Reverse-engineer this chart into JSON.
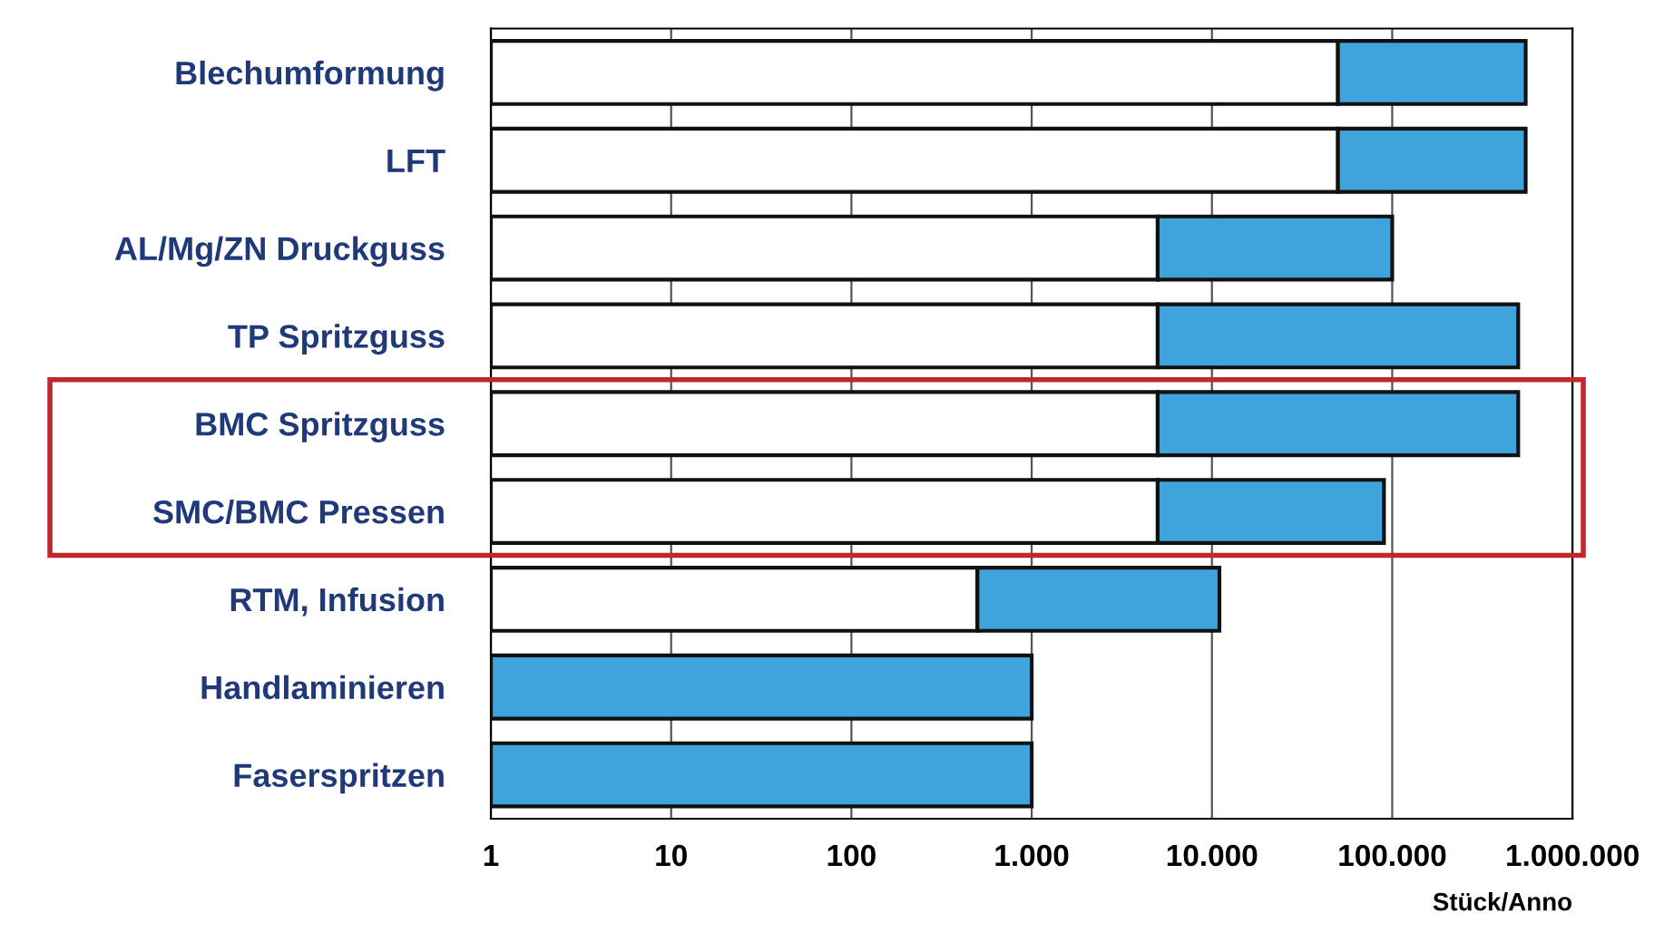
{
  "chart_data": {
    "type": "bar",
    "orientation": "horizontal",
    "stacked": true,
    "log": "x",
    "categories": [
      "Blechumformung",
      "LFT",
      "AL/Mg/ZN Druckguss",
      "TP Spritzguss",
      "BMC Spritzguss",
      "SMC/BMC Pressen",
      "RTM, Infusion",
      "Handlaminieren",
      "Faserspritzen"
    ],
    "series": [
      {
        "color": "#ffffff",
        "values": [
          50000,
          50000,
          5000,
          5000,
          5000,
          5000,
          500,
          1,
          1
        ]
      },
      {
        "color": "#3fa4dc",
        "values": [
          500000,
          500000,
          95000,
          495000,
          495000,
          85000,
          10500,
          999,
          999
        ]
      }
    ],
    "xlim": [
      1,
      1000000
    ],
    "xticks": [
      1,
      10,
      100,
      {
        "value": 1000,
        "label": "1.000"
      },
      {
        "value": 10000,
        "label": "10.000"
      },
      {
        "value": 100000,
        "label": "100.000"
      },
      {
        "value": 1000000,
        "label": "1.000.000"
      }
    ],
    "xlabel": "Stück/Anno",
    "grid": "x"
  }
}
